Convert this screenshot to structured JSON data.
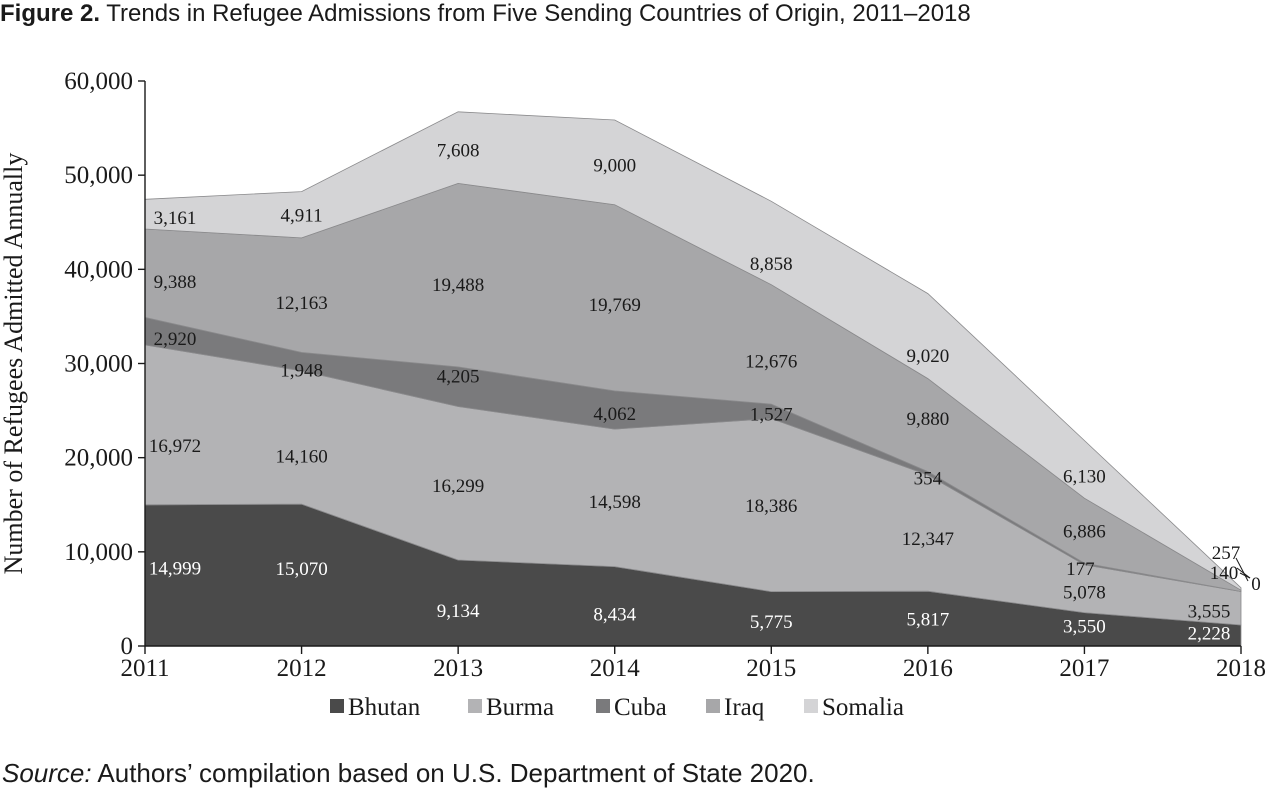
{
  "figure": {
    "label": "Figure 2.",
    "title": "Trends in Refugee Admissions from Five Sending Countries of Origin, 2011–2018",
    "source_label": "Source:",
    "source_text": "Authors’ compilation based on U.S. Department of State 2020."
  },
  "chart_data": {
    "type": "area",
    "stacked": true,
    "title": "Trends in Refugee Admissions from Five Sending Countries of Origin, 2011–2018",
    "xlabel": "",
    "ylabel": "Number of Refugees Admitted Annually",
    "ylim": [
      0,
      60000
    ],
    "yticks": [
      0,
      10000,
      20000,
      30000,
      40000,
      50000,
      60000
    ],
    "ytick_labels": [
      "0",
      "10,000",
      "20,000",
      "30,000",
      "40,000",
      "50,000",
      "60,000"
    ],
    "x": [
      "2011",
      "2012",
      "2013",
      "2014",
      "2015",
      "2016",
      "2017",
      "2018"
    ],
    "legend_position": "bottom",
    "grid": false,
    "series": [
      {
        "name": "Bhutan",
        "color": "#4a4a4a",
        "values": [
          14999,
          15070,
          9134,
          8434,
          5775,
          5817,
          3550,
          2228
        ],
        "labels": [
          "14,999",
          "15,070",
          "9,134",
          "8,434",
          "5,775",
          "5,817",
          "3,550",
          "2,228"
        ]
      },
      {
        "name": "Burma",
        "color": "#b3b3b5",
        "values": [
          16972,
          14160,
          16299,
          14598,
          18386,
          12347,
          5078,
          3555
        ],
        "labels": [
          "16,972",
          "14,160",
          "16,299",
          "14,598",
          "18,386",
          "12,347",
          "5,078",
          "3,555"
        ]
      },
      {
        "name": "Cuba",
        "color": "#7a7a7c",
        "values": [
          2920,
          1948,
          4205,
          4062,
          1527,
          354,
          177,
          0
        ],
        "labels": [
          "2,920",
          "1,948",
          "4,205",
          "4,062",
          "1,527",
          "354",
          "177",
          "0"
        ]
      },
      {
        "name": "Iraq",
        "color": "#a7a7a9",
        "values": [
          9388,
          12163,
          19488,
          19769,
          12676,
          9880,
          6886,
          140
        ],
        "labels": [
          "9,388",
          "12,163",
          "19,488",
          "19,769",
          "12,676",
          "9,880",
          "6,886",
          "140"
        ]
      },
      {
        "name": "Somalia",
        "color": "#d4d4d6",
        "values": [
          3161,
          4911,
          7608,
          9000,
          8858,
          9020,
          6130,
          257
        ],
        "labels": [
          "3,161",
          "4,911",
          "7,608",
          "9,000",
          "8,858",
          "9,020",
          "6,130",
          "257"
        ]
      }
    ]
  }
}
